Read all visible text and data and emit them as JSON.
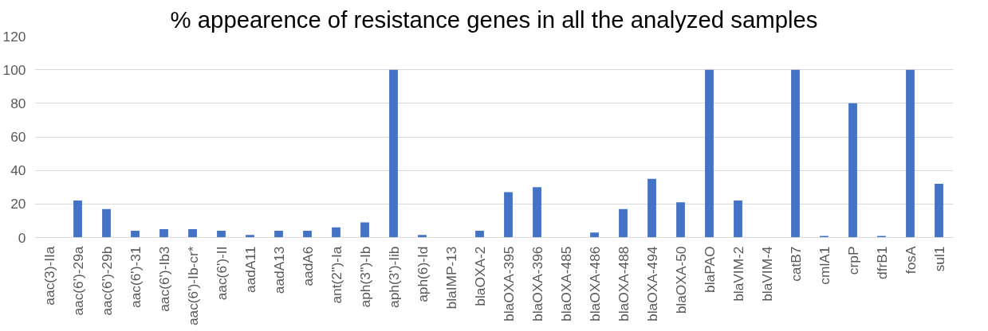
{
  "chart_data": {
    "type": "bar",
    "title": "% appearence of resistance genes in all the analyzed samples",
    "categories": [
      "aac(3)-IIa",
      "aac(6')-29a",
      "aac(6')-29b",
      "aac(6')-31",
      "aac(6')-Ib3",
      "aac(6')-Ib-cr*",
      "aac(6')-II",
      "aadA11",
      "aadA13",
      "aadA6",
      "ant(2'')-Ia",
      "aph(3'')-Ib",
      "aph(3')-Iib",
      "aph(6)-Id",
      "blaIMP-13",
      "blaOXA-2",
      "blaOXA-395",
      "blaOXA-396",
      "blaOXA-485",
      "blaOXA-486",
      "blaOXA-488",
      "blaOXA-494",
      "blaOXA-50",
      "blaPAO",
      "blaVIM-2",
      "blaVIM-4",
      "catB7",
      "cmlA1",
      "crpP",
      "dfrB1",
      "fosA",
      "sul1"
    ],
    "values": [
      0,
      22,
      17,
      4,
      5,
      5,
      4,
      1.5,
      4,
      4,
      6,
      9,
      100,
      1.5,
      0,
      4,
      27,
      30,
      0,
      3,
      17,
      35,
      21,
      100,
      22,
      0,
      100,
      1,
      80,
      1,
      100,
      32
    ],
    "color": "#4472c4",
    "ylim": [
      0,
      120
    ],
    "yticks": [
      0,
      20,
      40,
      60,
      80,
      100,
      120
    ],
    "grid": "y"
  }
}
